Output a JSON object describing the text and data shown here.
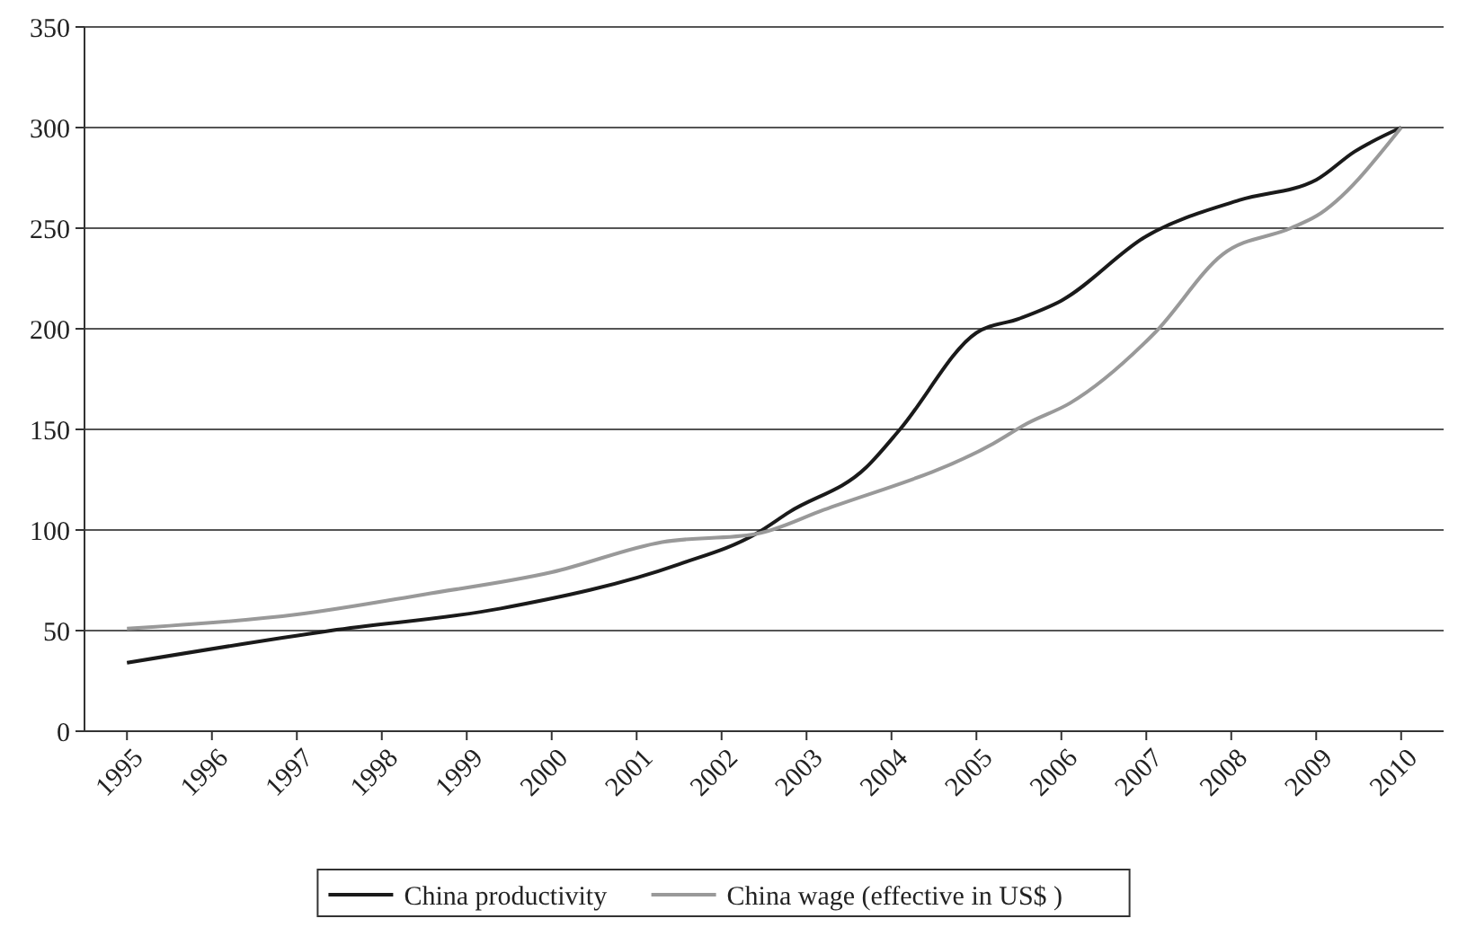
{
  "chart_data": {
    "type": "line",
    "xlim": [
      1994.5,
      2010.5
    ],
    "xticks": [
      1995,
      1996,
      1997,
      1998,
      1999,
      2000,
      2001,
      2002,
      2003,
      2004,
      2005,
      2006,
      2007,
      2008,
      2009,
      2010
    ],
    "ylim": [
      0,
      350
    ],
    "yticks": [
      0,
      50,
      100,
      150,
      200,
      250,
      300,
      350
    ],
    "grid": "y",
    "legend": "bottom",
    "line_style": "solid",
    "marker": "none",
    "series": [
      {
        "name": "China productivity",
        "color": "#1a1a1a",
        "x": [
          1995,
          1997.4,
          1999.4,
          2001.5,
          2002.4,
          2002.8,
          2003.7,
          2004.1,
          2005.0,
          2005.5,
          2006.0,
          2007.0,
          2008.1,
          2009.0,
          2009.45,
          2010
        ],
        "values": [
          34,
          50,
          61,
          83,
          98,
          109,
          131,
          150,
          198,
          205,
          214,
          246,
          264,
          274,
          288,
          300
        ]
      },
      {
        "name": "China wage (effective in US$ )",
        "color": "#999999",
        "x": [
          1995,
          1997.0,
          1998.5,
          2000.0,
          2001.3,
          2002.4,
          2003.2,
          2005.2,
          2005.6,
          2006.1,
          2007.1,
          2007.9,
          2008.7,
          2009.0,
          2010
        ],
        "values": [
          51,
          58,
          68,
          79,
          94,
          98,
          110,
          143,
          153,
          163,
          198,
          237,
          250,
          256,
          300
        ]
      }
    ]
  }
}
